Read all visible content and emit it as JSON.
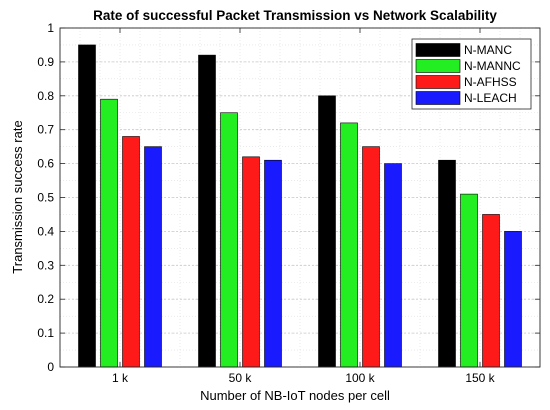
{
  "chart_data": {
    "type": "bar",
    "title": "Rate of successful Packet Transmission vs Network Scalability",
    "xlabel": "Number of NB-IoT nodes per cell",
    "ylabel": "Transmission success rate",
    "categories": [
      "1 k",
      "50 k",
      "100 k",
      "150 k"
    ],
    "ylim": [
      0,
      1
    ],
    "yticks": [
      0,
      0.1,
      0.2,
      0.3,
      0.4,
      0.5,
      0.6,
      0.7,
      0.8,
      0.9,
      1
    ],
    "ytick_labels": [
      "0",
      "0.1",
      "0.2",
      "0.3",
      "0.4",
      "0.5",
      "0.6",
      "0.7",
      "0.8",
      "0.9",
      "1"
    ],
    "grid": true,
    "legend_position": "top-right",
    "series": [
      {
        "name": "N-MANC",
        "color": "#000000",
        "values": [
          0.95,
          0.92,
          0.8,
          0.61
        ]
      },
      {
        "name": "N-MANNC",
        "color": "#22ee22",
        "values": [
          0.79,
          0.75,
          0.72,
          0.51
        ]
      },
      {
        "name": "N-AFHSS",
        "color": "#ff1a1a",
        "values": [
          0.68,
          0.62,
          0.65,
          0.45
        ]
      },
      {
        "name": "N-LEACH",
        "color": "#1a1aff",
        "values": [
          0.65,
          0.61,
          0.6,
          0.4
        ]
      }
    ]
  }
}
